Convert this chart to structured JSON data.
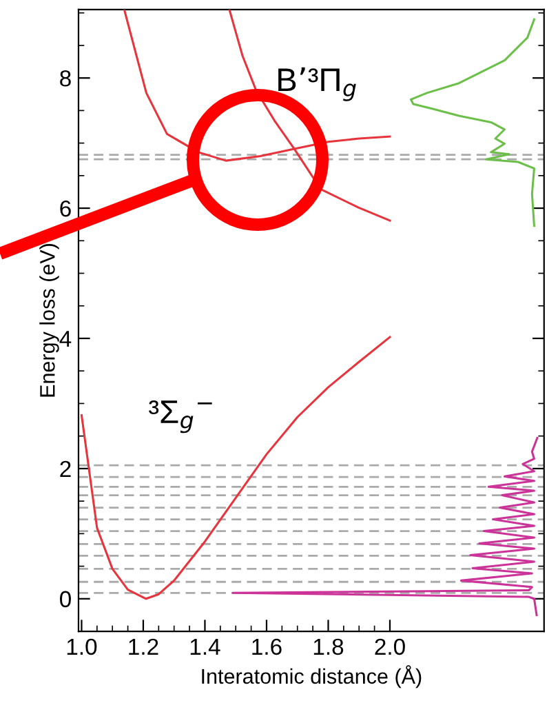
{
  "chart_data": {
    "type": "line",
    "xlabel": "Interatomic distance (Å)",
    "ylabel": "Energy loss (eV)",
    "xlim": [
      0.99,
      2.5
    ],
    "ylim": [
      -0.5,
      9.05
    ],
    "xticks": [
      {
        "value": 1,
        "label": "1.0"
      },
      1.2,
      1.4,
      1.6,
      1.8,
      {
        "value": 2,
        "label": "2.0"
      }
    ],
    "yticks": [
      0,
      2,
      4,
      6,
      8
    ],
    "grid": false,
    "legend": false,
    "marker": "none",
    "line_style": "solid",
    "series": [
      {
        "color": "#e8343c",
        "x": [
          1.0,
          1.05,
          1.1,
          1.15,
          1.209,
          1.25,
          1.3,
          1.4,
          1.5,
          1.6,
          1.7,
          1.8,
          1.9,
          2.0
        ],
        "values": [
          2.82,
          1.09,
          0.46,
          0.14,
          0.0,
          0.07,
          0.28,
          0.88,
          1.55,
          2.22,
          2.79,
          3.25,
          3.64,
          4.02
        ]
      },
      {
        "color": "#e8343c",
        "x": [
          1.139,
          1.21,
          1.277,
          1.379,
          1.468,
          1.58,
          1.69,
          1.8,
          1.9,
          2.0
        ],
        "values": [
          9.04,
          7.77,
          7.14,
          6.86,
          6.73,
          6.8,
          6.91,
          7.02,
          7.07,
          7.1
        ]
      },
      {
        "color": "#e8343c",
        "x": [
          1.48,
          1.522,
          1.566,
          1.625,
          1.69,
          1.776,
          1.898,
          2.0
        ],
        "values": [
          9.04,
          8.34,
          7.81,
          7.35,
          6.91,
          6.29,
          6.01,
          5.81
        ]
      },
      {
        "color": "#6cc04a",
        "x": [
          2.468,
          2.446,
          2.372,
          2.224,
          2.12,
          2.068,
          2.076,
          2.135,
          2.224,
          2.328,
          2.372,
          2.342,
          2.372,
          2.328,
          2.387,
          2.312,
          2.416,
          2.468,
          2.461,
          2.468
        ],
        "values": [
          8.9,
          8.62,
          8.27,
          7.92,
          7.77,
          7.67,
          7.6,
          7.53,
          7.42,
          7.32,
          7.21,
          7.07,
          6.99,
          6.86,
          6.83,
          6.75,
          6.71,
          6.61,
          6.22,
          5.73
        ]
      },
      {
        "color": "#cc3399",
        "x": [
          2.476,
          2.468,
          2.45,
          1.49,
          2.45,
          2.461,
          2.231,
          2.461,
          2.268,
          2.468,
          2.261,
          2.468,
          2.29,
          2.468,
          2.305,
          2.468,
          2.335,
          2.468,
          2.357,
          2.468,
          2.364,
          2.468,
          2.32,
          2.468,
          2.372,
          2.468,
          2.431,
          2.468,
          2.461,
          2.478
        ],
        "values": [
          -0.25,
          0.0,
          0.03,
          0.09,
          0.13,
          0.18,
          0.28,
          0.39,
          0.47,
          0.57,
          0.67,
          0.77,
          0.85,
          0.94,
          1.04,
          1.12,
          1.22,
          1.3,
          1.4,
          1.48,
          1.59,
          1.66,
          1.72,
          1.81,
          1.88,
          1.96,
          2.07,
          2.15,
          2.26,
          2.47
        ]
      }
    ],
    "ref_lines": [
      {
        "axis": "y",
        "value": 6.82,
        "color": "#aaaaaa",
        "line_style": "dashed"
      },
      {
        "axis": "y",
        "value": 6.75,
        "color": "#aaaaaa",
        "line_style": "dashed"
      },
      {
        "axis": "y",
        "value": 2.05,
        "color": "#aaaaaa",
        "line_style": "dashed"
      },
      {
        "axis": "y",
        "value": 1.87,
        "color": "#aaaaaa",
        "line_style": "dashed"
      },
      {
        "axis": "y",
        "value": 1.72,
        "color": "#aaaaaa",
        "line_style": "dashed"
      },
      {
        "axis": "y",
        "value": 1.59,
        "color": "#aaaaaa",
        "line_style": "dashed"
      },
      {
        "axis": "y",
        "value": 1.4,
        "color": "#aaaaaa",
        "line_style": "dashed"
      },
      {
        "axis": "y",
        "value": 1.22,
        "color": "#aaaaaa",
        "line_style": "dashed"
      },
      {
        "axis": "y",
        "value": 1.04,
        "color": "#aaaaaa",
        "line_style": "dashed"
      },
      {
        "axis": "y",
        "value": 0.84,
        "color": "#aaaaaa",
        "line_style": "dashed"
      },
      {
        "axis": "y",
        "value": 0.66,
        "color": "#aaaaaa",
        "line_style": "dashed"
      },
      {
        "axis": "y",
        "value": 0.46,
        "color": "#aaaaaa",
        "line_style": "dashed"
      },
      {
        "axis": "y",
        "value": 0.26,
        "color": "#aaaaaa",
        "line_style": "dashed"
      },
      {
        "axis": "y",
        "value": 0.09,
        "color": "#aaaaaa",
        "line_style": "dashed"
      }
    ],
    "annotations": [
      "B’³Π$_{g}$",
      "³Σ$_{g}$$^{−}$"
    ]
  }
}
